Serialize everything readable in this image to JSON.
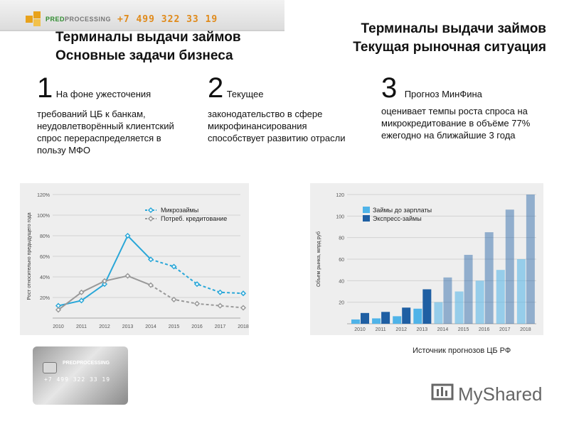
{
  "banner": {
    "logo_pre": "PRED",
    "logo_post": "PROCESSING",
    "phone": "+7 499 322 33 19"
  },
  "left_heading": {
    "line1": "Терминалы выдачи займов",
    "line2": "Основные задачи бизнеса"
  },
  "right_heading": {
    "line1": "Терминалы выдачи займов",
    "line2": "Текущая рыночная ситуация"
  },
  "points": [
    {
      "num": "1",
      "first": "На фоне ужесточения",
      "rest": "требований ЦБ к банкам, неудовлетворённый клиентский спрос перераспределяется в пользу МФО"
    },
    {
      "num": "2",
      "first": "Текущее",
      "rest": "законодательство в сфере микрофинансирования способствует развитию отрасли"
    },
    {
      "num": "3",
      "first": "Прогноз МинФина",
      "rest": "оценивает темпы роста спроса на микрокредитование в объёме 77% ежегодно на ближайшие 3 года"
    }
  ],
  "chart_data": [
    {
      "type": "line",
      "ylabel": "Рост относительно предыдущего года",
      "x": [
        2010,
        2011,
        2012,
        2013,
        2014,
        2015,
        2016,
        2017,
        2018
      ],
      "yticks": [
        "20%",
        "40%",
        "60%",
        "80%",
        "100%",
        "120%"
      ],
      "ylim": [
        0,
        120
      ],
      "legend_position": "top-right",
      "grid": true,
      "series": [
        {
          "name": "Микрозаймы",
          "color": "#2aa7d8",
          "values": [
            12,
            17,
            33,
            80,
            57,
            50,
            33,
            25,
            24
          ],
          "forecast_from_index": 4
        },
        {
          "name": "Потреб. кредитование",
          "color": "#999999",
          "values": [
            8,
            25,
            36,
            41,
            32,
            18,
            14,
            12,
            10
          ],
          "forecast_from_index": 4
        }
      ]
    },
    {
      "type": "bar",
      "ylabel": "Объем рынка, млрд руб",
      "categories": [
        "2010",
        "2011",
        "2012",
        "2013",
        "2014",
        "2015",
        "2016",
        "2017",
        "2018"
      ],
      "yticks": [
        "20",
        "40",
        "60",
        "80",
        "100",
        "120"
      ],
      "ylim": [
        0,
        120
      ],
      "legend_position": "top-left",
      "grid": true,
      "series": [
        {
          "name": "Займы до зарплаты",
          "color": "#4fb3e8",
          "values": [
            4,
            5,
            7,
            14,
            20,
            30,
            40,
            50,
            60
          ],
          "forecast_from_index": 4
        },
        {
          "name": "Экспресс-займы",
          "color": "#1f5fa3",
          "values": [
            10,
            11,
            15,
            32,
            43,
            64,
            85,
            106,
            120
          ],
          "forecast_from_index": 4
        }
      ]
    }
  ],
  "source": "Источник прогнозов ЦБ РФ",
  "card": {
    "logo": "PREDPROCESSING",
    "number": "+7 499 322 33 19"
  },
  "watermark": {
    "text": "MyShared"
  }
}
